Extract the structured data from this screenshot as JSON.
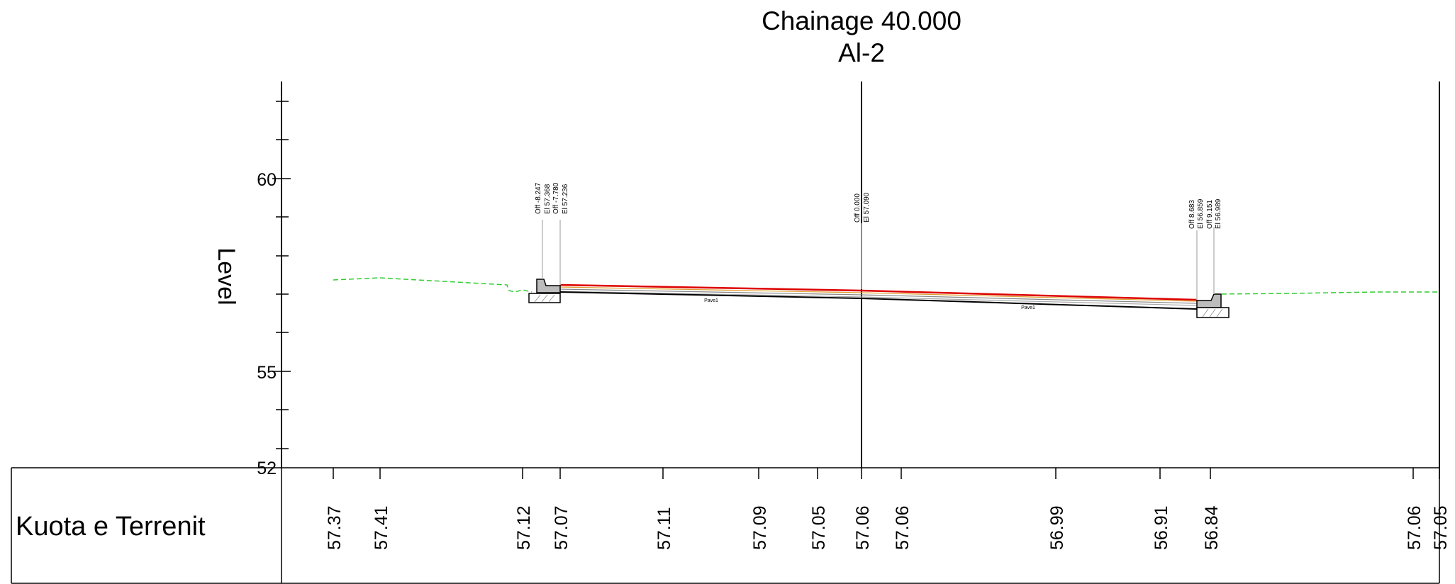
{
  "title": {
    "line1": "Chainage 40.000",
    "line2": "Al-2"
  },
  "axis": {
    "label": "Level",
    "ticks": [
      "60",
      "55",
      "52"
    ]
  },
  "band": {
    "label": "Kuota e Terrenit",
    "values": [
      "57.37",
      "57.41",
      "57.12",
      "57.07",
      "57.11",
      "57.09",
      "57.05",
      "57.06",
      "57.06",
      "56.99",
      "56.91",
      "56.84",
      "57.06",
      "57.05"
    ]
  },
  "annotations": {
    "left": [
      "Off -8.247",
      "El 57.368",
      "Off -7.780",
      "El 57.236"
    ],
    "center": [
      "Off 0.000",
      "El 57.090"
    ],
    "right": [
      "Off 8.683",
      "El 56.859",
      "Off 9.151",
      "El 56.989"
    ]
  },
  "surface_labels": [
    "Pave1",
    "Pave1"
  ],
  "colors": {
    "existing_ground": "#33cc33",
    "top_surface": "#dd0000",
    "pavement_base": "#000000",
    "grid": "#000000"
  }
}
